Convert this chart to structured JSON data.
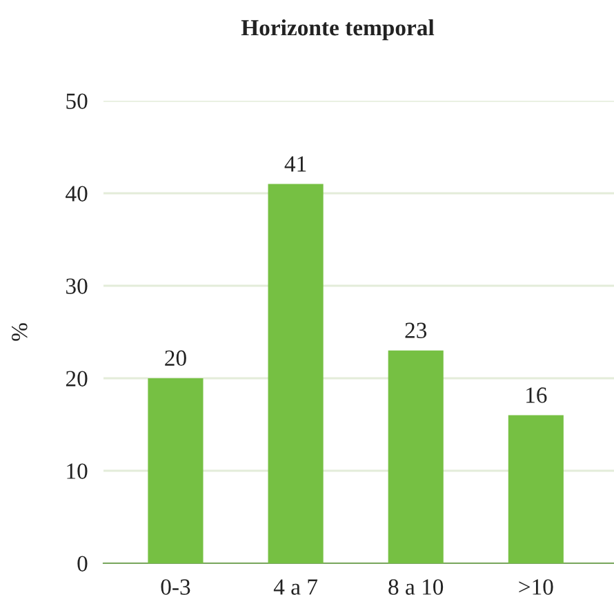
{
  "chart_data": {
    "type": "bar",
    "title": "Horizonte temporal",
    "ylabel": "%",
    "categories": [
      "0-3",
      "4 a 7",
      "8 a 10",
      ">10"
    ],
    "values": [
      20,
      41,
      23,
      16
    ],
    "color": "#76c043",
    "ylim": [
      0,
      50
    ],
    "yticks": [
      0,
      10,
      20,
      30,
      40,
      50
    ],
    "grid": "y",
    "data_labels": true
  }
}
